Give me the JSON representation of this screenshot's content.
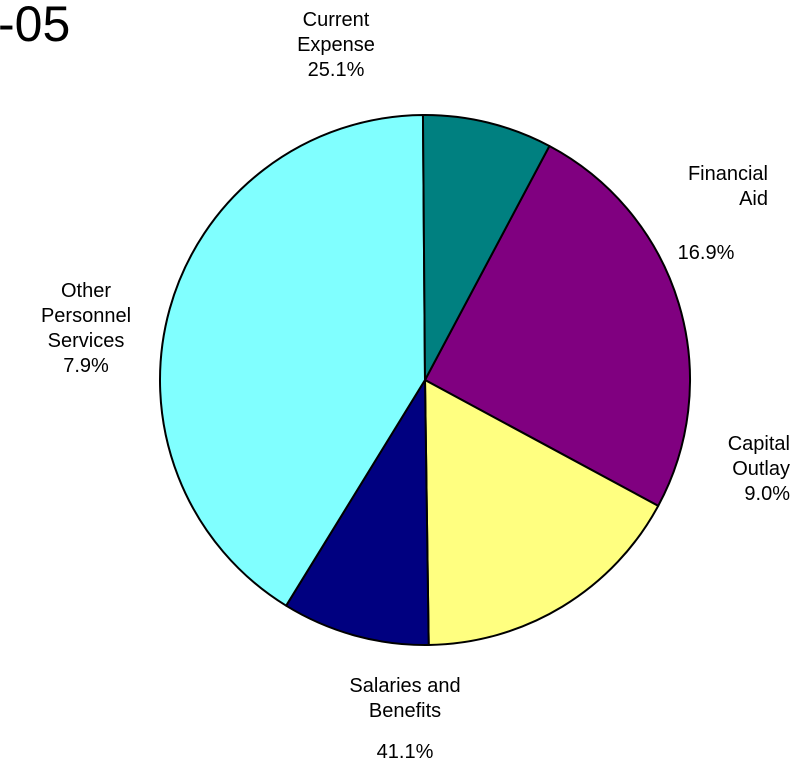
{
  "title_fragment": "-05",
  "chart_data": {
    "type": "pie",
    "title": "-05",
    "slices": [
      {
        "label": [
          "Current",
          "Expense"
        ],
        "value": 25.1,
        "value_label": "25.1%",
        "color": "#800080"
      },
      {
        "label": [
          "Financial",
          "Aid"
        ],
        "value": 16.9,
        "value_label": "16.9%",
        "color": "#ffff80"
      },
      {
        "label": [
          "Capital",
          "Outlay"
        ],
        "value": 9.0,
        "value_label": "9.0%",
        "color": "#000080"
      },
      {
        "label": [
          "Salaries and",
          "Benefits"
        ],
        "value": 41.1,
        "value_label": "41.1%",
        "color": "#80ffff"
      },
      {
        "label": [
          "Other",
          "Personnel",
          "Services"
        ],
        "value": 7.9,
        "value_label": "7.9%",
        "color": "#008080"
      }
    ],
    "start_angle_deg": 28,
    "direction": "clockwise",
    "legend": "none"
  }
}
